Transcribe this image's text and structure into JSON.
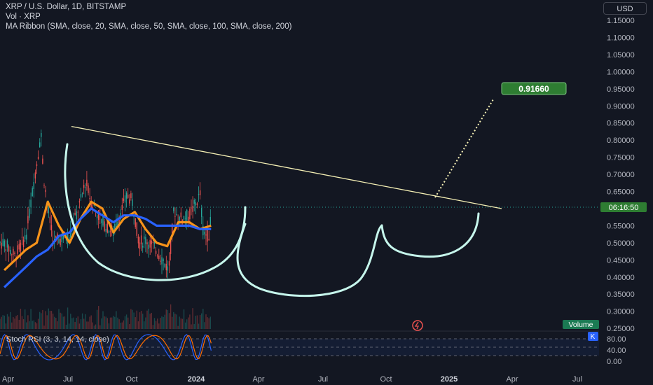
{
  "header": {
    "title": "XRP / U.S. Dollar, 1D, BITSTAMP",
    "volume_label": "Vol · XRP",
    "ma_ribbon_label": "MA Ribbon (SMA, close, 20, SMA, close, 50, SMA, close, 100, SMA, close, 200)",
    "currency": "USD"
  },
  "price_label": "06:16:50",
  "target_label": "0.91660",
  "volume_badge": "Volume",
  "stoch_label": "Stoch RSI (3, 3, 14, 14, close)",
  "stoch_badge": "K",
  "colors": {
    "background": "#131722",
    "up": "#26a69a",
    "down": "#ef5350",
    "ma20": "#26a69a",
    "ma50": "#f7931a",
    "ma100": "#f7931a",
    "ma200": "#2962ff",
    "trendline": "#f5f0b5",
    "drawing": "#c6f6ec",
    "target_badge": "#2e7d32",
    "stoch_k": "#2962ff",
    "stoch_d": "#ff6d00"
  },
  "chart_data": {
    "type": "line",
    "title": "XRP / U.S. Dollar, 1D, BITSTAMP",
    "y_axis": {
      "ticks": [
        "1.15000",
        "1.10000",
        "1.05000",
        "1.00000",
        "0.95000",
        "0.90000",
        "0.85000",
        "0.80000",
        "0.75000",
        "0.70000",
        "0.65000",
        "0.60000",
        "0.55000",
        "0.50000",
        "0.45000",
        "0.40000",
        "0.35000",
        "0.30000",
        "0.25000"
      ],
      "range": [
        0.25,
        1.15
      ]
    },
    "x_axis": {
      "ticks": [
        "Apr",
        "Jul",
        "Oct",
        "2024",
        "Apr",
        "Jul",
        "Oct",
        "2025",
        "Apr",
        "Jul"
      ]
    },
    "series": [
      {
        "name": "XRP",
        "x": [
          "2023-04",
          "2023-05",
          "2023-06",
          "2023-07-13",
          "2023-07-20",
          "2023-08",
          "2023-08-17",
          "2023-09",
          "2023-10",
          "2023-11",
          "2023-11-15",
          "2023-12",
          "2024-01",
          "2024-02",
          "2024-03-11",
          "2024-03-25",
          "2024-04-13",
          "2024-05",
          "2024-06",
          "2024-07-05",
          "2024-07-20",
          "2024-08",
          "2024-09",
          "2024-10-01",
          "2024-10-10",
          "2024-10-25",
          "2024-11-02"
        ],
        "values": [
          0.5,
          0.46,
          0.52,
          0.82,
          0.7,
          0.6,
          0.5,
          0.51,
          0.52,
          0.62,
          0.68,
          0.62,
          0.56,
          0.53,
          0.64,
          0.62,
          0.5,
          0.51,
          0.48,
          0.42,
          0.6,
          0.57,
          0.58,
          0.64,
          0.53,
          0.52,
          0.58
        ]
      },
      {
        "name": "SMA 50",
        "x": [
          "2023-04",
          "2023-06",
          "2023-07",
          "2023-08",
          "2023-09",
          "2023-10",
          "2023-11",
          "2023-12",
          "2024-01",
          "2024-02",
          "2024-03",
          "2024-04",
          "2024-05",
          "2024-06",
          "2024-07",
          "2024-08",
          "2024-09",
          "2024-10",
          "2024-11"
        ],
        "values": [
          0.42,
          0.48,
          0.5,
          0.62,
          0.55,
          0.5,
          0.57,
          0.62,
          0.6,
          0.53,
          0.57,
          0.59,
          0.54,
          0.5,
          0.49,
          0.56,
          0.56,
          0.54,
          0.55
        ]
      },
      {
        "name": "SMA 200",
        "x": [
          "2023-04",
          "2023-06",
          "2023-07",
          "2023-08",
          "2023-09",
          "2023-10",
          "2023-11",
          "2023-12",
          "2024-01",
          "2024-02",
          "2024-03",
          "2024-04",
          "2024-05",
          "2024-06",
          "2024-07",
          "2024-08",
          "2024-09",
          "2024-10",
          "2024-11"
        ],
        "values": [
          0.37,
          0.43,
          0.46,
          0.48,
          0.52,
          0.53,
          0.57,
          0.6,
          0.58,
          0.56,
          0.58,
          0.58,
          0.57,
          0.55,
          0.55,
          0.55,
          0.55,
          0.54,
          0.54
        ]
      }
    ],
    "trendline": {
      "x": [
        "2023-07-01",
        "2024-12-01"
      ],
      "values": [
        0.84,
        0.6
      ]
    },
    "projection_target": 0.9166,
    "stoch_rsi": {
      "ticks": [
        "80.00",
        "40.00",
        "0.00"
      ]
    },
    "grid": true
  }
}
